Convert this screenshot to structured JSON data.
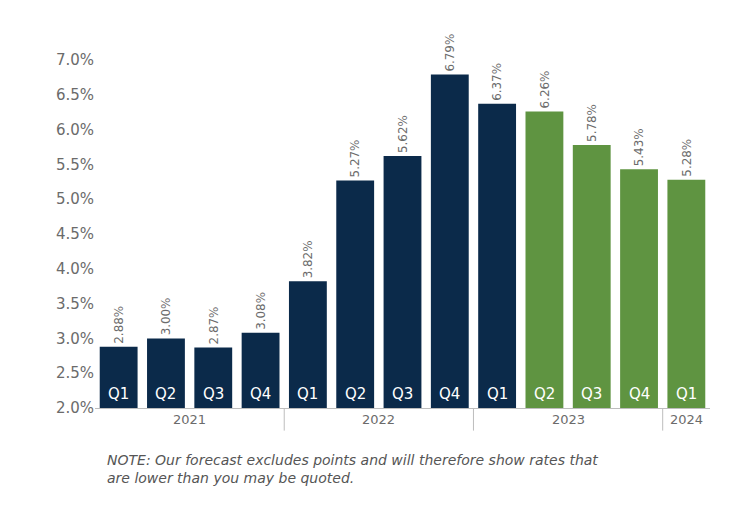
{
  "chart_data": {
    "type": "bar",
    "categories": [
      "Q1",
      "Q2",
      "Q3",
      "Q4",
      "Q1",
      "Q2",
      "Q3",
      "Q4",
      "Q1",
      "Q2",
      "Q3",
      "Q4",
      "Q1"
    ],
    "years": [
      "2021",
      "2021",
      "2021",
      "2021",
      "2022",
      "2022",
      "2022",
      "2022",
      "2023",
      "2023",
      "2023",
      "2023",
      "2024"
    ],
    "values": [
      2.88,
      3.0,
      2.87,
      3.08,
      3.82,
      5.27,
      5.62,
      6.79,
      6.37,
      6.26,
      5.78,
      5.43,
      5.28
    ],
    "value_labels": [
      "2.88%",
      "3.00%",
      "2.87%",
      "3.08%",
      "3.82%",
      "5.27%",
      "5.62%",
      "6.79%",
      "6.37%",
      "6.26%",
      "5.78%",
      "5.43%",
      "5.28%"
    ],
    "colors": [
      "#0b2a4a",
      "#0b2a4a",
      "#0b2a4a",
      "#0b2a4a",
      "#0b2a4a",
      "#0b2a4a",
      "#0b2a4a",
      "#0b2a4a",
      "#0b2a4a",
      "#5f9441",
      "#5f9441",
      "#5f9441",
      "#5f9441"
    ],
    "ylim": [
      2.0,
      7.0
    ],
    "yticks": [
      {
        "value": 2.0,
        "label": "2.0%"
      },
      {
        "value": 2.5,
        "label": "2.5%"
      },
      {
        "value": 3.0,
        "label": "3.0%"
      },
      {
        "value": 3.5,
        "label": "3.5%"
      },
      {
        "value": 4.0,
        "label": "4.0%"
      },
      {
        "value": 4.5,
        "label": "4.5%"
      },
      {
        "value": 5.0,
        "label": "5.0%"
      },
      {
        "value": 5.5,
        "label": "5.5%"
      },
      {
        "value": 6.0,
        "label": "6.0%"
      },
      {
        "value": 6.5,
        "label": "6.5%"
      },
      {
        "value": 7.0,
        "label": "7.0%"
      }
    ],
    "grid": false,
    "data_labels": true,
    "note": [
      "NOTE: Our forecast excludes points and will therefore show rates that",
      "are lower than you may be quoted."
    ]
  }
}
